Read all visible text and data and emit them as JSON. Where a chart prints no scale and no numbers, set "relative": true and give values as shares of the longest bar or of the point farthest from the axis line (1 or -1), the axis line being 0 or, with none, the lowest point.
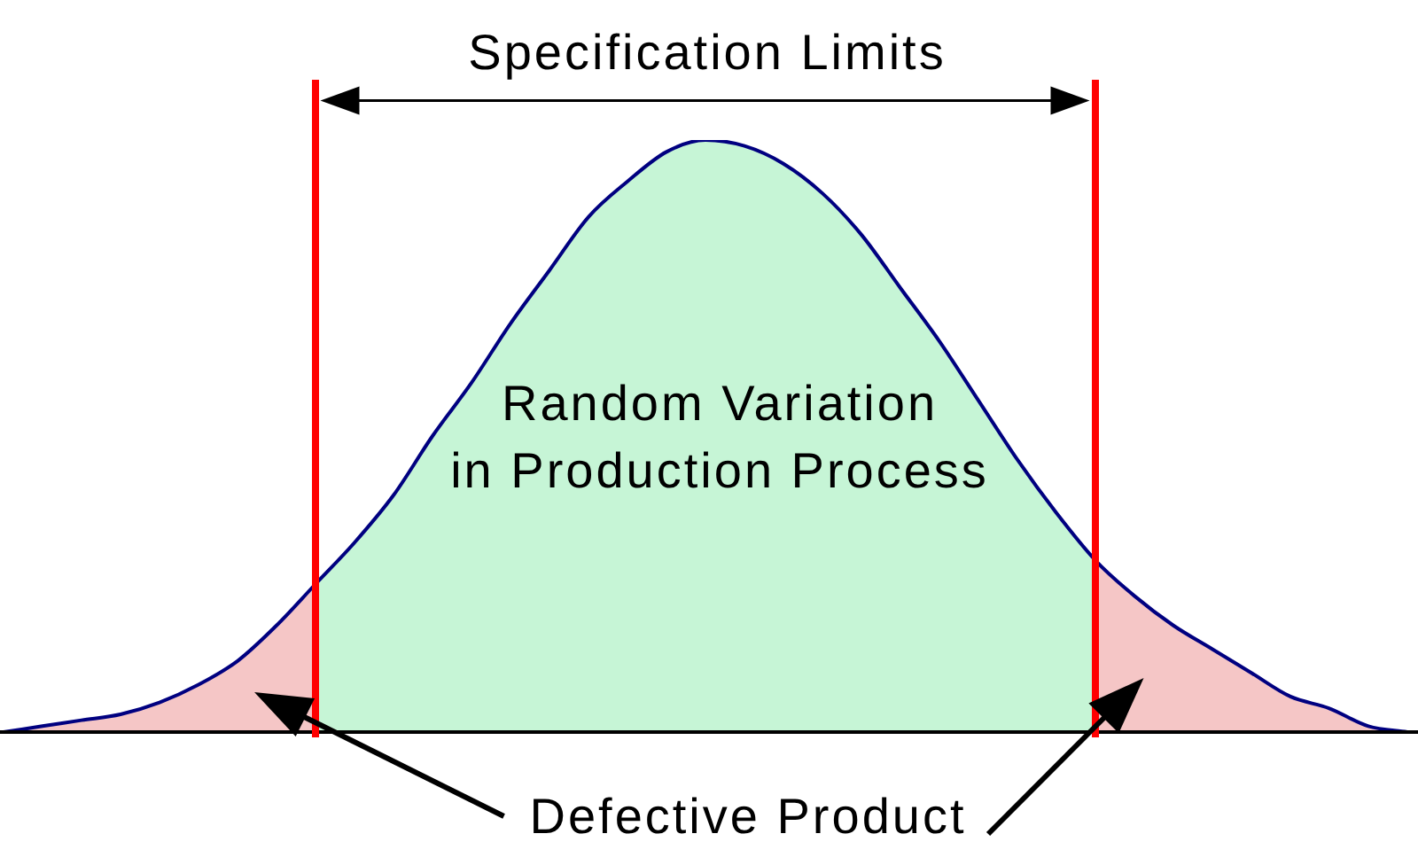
{
  "chart_data": {
    "type": "area",
    "relative": true,
    "tick_labels": false,
    "categories": [
      null,
      null,
      null,
      null,
      null,
      null,
      null,
      null,
      null,
      null,
      null,
      null,
      null,
      null,
      null,
      null,
      null,
      null,
      null,
      null,
      null,
      null,
      null,
      null,
      null,
      null,
      null,
      null,
      null,
      null,
      null,
      null,
      null,
      null,
      null,
      null,
      null
    ],
    "series": [
      {
        "type": "line",
        "color": "#000080",
        "values": [
          0.0,
          0.01,
          0.02,
          0.03,
          0.05,
          0.08,
          0.12,
          0.18,
          0.25,
          0.32,
          0.4,
          0.5,
          0.59,
          0.69,
          0.78,
          0.87,
          0.93,
          0.98,
          1.0,
          0.99,
          0.96,
          0.91,
          0.84,
          0.75,
          0.66,
          0.56,
          0.46,
          0.37,
          0.29,
          0.23,
          0.18,
          0.14,
          0.1,
          0.06,
          0.04,
          0.01,
          0.0
        ]
      },
      {
        "color": "#f5c6c6",
        "values": [
          0.0,
          0.01,
          0.02,
          0.03,
          0.05,
          0.08,
          0.12,
          0.18,
          0.25,
          null,
          null,
          null,
          null,
          null,
          null,
          null,
          null,
          null,
          null,
          null,
          null,
          null,
          null,
          null,
          null,
          null,
          null,
          null,
          null,
          null,
          null,
          null,
          null,
          null,
          null,
          null,
          null
        ]
      },
      {
        "color": "#c6f5d6",
        "values": [
          null,
          null,
          null,
          null,
          null,
          null,
          null,
          null,
          0.25,
          0.32,
          0.4,
          0.5,
          0.59,
          0.69,
          0.78,
          0.87,
          0.93,
          0.98,
          1.0,
          0.99,
          0.96,
          0.91,
          0.84,
          0.75,
          0.66,
          0.56,
          0.46,
          0.37,
          0.29,
          null,
          null,
          null,
          null,
          null,
          null,
          null,
          null
        ]
      },
      {
        "color": "#f5c6c6",
        "values": [
          null,
          null,
          null,
          null,
          null,
          null,
          null,
          null,
          null,
          null,
          null,
          null,
          null,
          null,
          null,
          null,
          null,
          null,
          null,
          null,
          null,
          null,
          null,
          null,
          null,
          null,
          null,
          null,
          0.29,
          0.23,
          0.18,
          0.14,
          0.1,
          0.06,
          0.04,
          0.01,
          0.0
        ]
      }
    ],
    "annotations": [
      "Specification Limits",
      "Random Variation\nin Production Process",
      "Defective Product"
    ]
  }
}
